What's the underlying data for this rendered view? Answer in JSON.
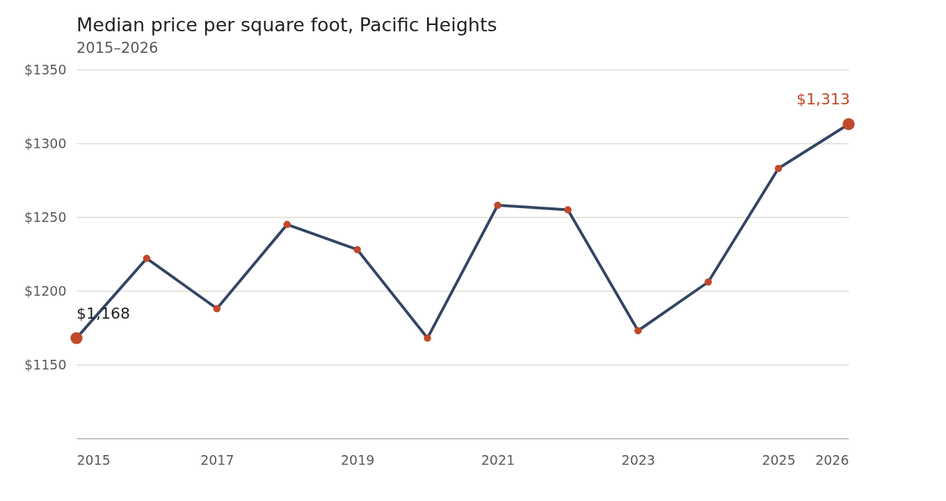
{
  "chart_data": {
    "type": "line",
    "title": "Median price per square foot, Pacific Heights",
    "subtitle": "2015–2026",
    "x": [
      2015,
      2016,
      2017,
      2018,
      2019,
      2020,
      2021,
      2022,
      2023,
      2024,
      2025,
      2026
    ],
    "series": [
      {
        "color": "#344563",
        "values": [
          1168,
          1222,
          1188,
          1245,
          1228,
          1168,
          1258,
          1255,
          1173,
          1206,
          1283,
          1313
        ]
      }
    ],
    "xlim": [
      2015,
      2026
    ],
    "xticks": [
      2015,
      2017,
      2019,
      2021,
      2023,
      2025,
      2026
    ],
    "ylim": [
      1100,
      1350
    ],
    "yticks": [
      {
        "value": 1150,
        "label": "$1150"
      },
      {
        "value": 1200,
        "label": "$1200"
      },
      {
        "value": 1250,
        "label": "$1250"
      },
      {
        "value": 1300,
        "label": "$1300"
      },
      {
        "value": 1350,
        "label": "$1350"
      }
    ],
    "grid": "y",
    "marker": "circle",
    "line_style": "solid",
    "annotations": [
      {
        "text": "$1,168",
        "x": 2015,
        "y": 1168
      },
      {
        "text": "$1,313",
        "x": 2026,
        "y": 1313
      }
    ]
  }
}
